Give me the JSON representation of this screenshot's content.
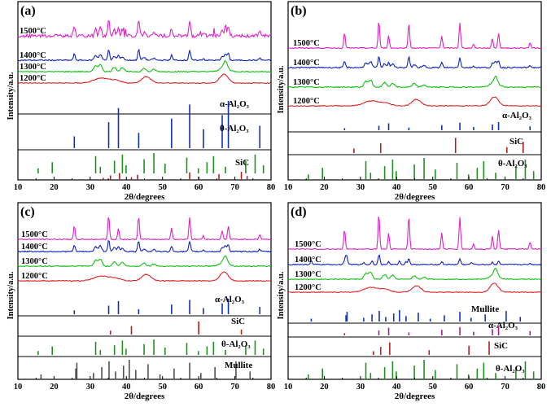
{
  "chart_data": [
    {
      "type": "line",
      "panel": "(a)",
      "xlabel": "2θ/degrees",
      "ylabel": "Intensity/a.u.",
      "xlim": [
        10,
        80
      ],
      "xticks": [
        10,
        20,
        30,
        40,
        50,
        60,
        70,
        80
      ],
      "grid": false,
      "series": [
        {
          "name": "1500°C",
          "color": "#e020c8"
        },
        {
          "name": "1400°C",
          "color": "#1020c0"
        },
        {
          "name": "1300°C",
          "color": "#10c010"
        },
        {
          "name": "1200°C",
          "color": "#e02020"
        }
      ],
      "references": [
        {
          "name": "α-Al₂O₃",
          "color": "#1030b0",
          "peaks": [
            25.6,
            35.1,
            37.8,
            43.4,
            52.5,
            57.5,
            61.3,
            66.5,
            68.2,
            76.9
          ]
        },
        {
          "name": "θ-Al₂O₃",
          "color": "#209020",
          "peaks": [
            15.6,
            19.5,
            31.5,
            32.8,
            36.7,
            38.9,
            39.9,
            44.9,
            47.6,
            50.7,
            56.7,
            59.9,
            62.3,
            64.1,
            67.4,
            73.0,
            75.6,
            77.9
          ]
        },
        {
          "name": "SiC",
          "color": "#b02020",
          "peaks": [
            33.6,
            35.6,
            38.1,
            41.4,
            43.1,
            57.5,
            60.0,
            65.6,
            71.8,
            73.4
          ]
        }
      ]
    },
    {
      "type": "line",
      "panel": "(b)",
      "xlabel": "2θ/degrees",
      "ylabel": "Intensity/a.u.",
      "xlim": [
        10,
        80
      ],
      "xticks": [
        10,
        20,
        30,
        40,
        50,
        60,
        70,
        80
      ],
      "grid": false,
      "series": [
        {
          "name": "1500°C",
          "color": "#e020c8"
        },
        {
          "name": "1400°C",
          "color": "#1020c0"
        },
        {
          "name": "1300°C",
          "color": "#10c010"
        },
        {
          "name": "1200°C",
          "color": "#e02020"
        }
      ],
      "references": [
        {
          "name": "α-Al₂O₃",
          "color": "#1030b0",
          "peaks": [
            25.6,
            35.1,
            37.8,
            43.4,
            52.5,
            57.5,
            61.3,
            66.5,
            68.2,
            76.9
          ]
        },
        {
          "name": "SiC",
          "color": "#b02020",
          "peaks": [
            28.2,
            35.6,
            56.3,
            70.5,
            75.0
          ]
        },
        {
          "name": "θ-Al₂O₃",
          "color": "#209020",
          "peaks": [
            15.6,
            19.5,
            31.5,
            32.8,
            36.7,
            38.9,
            39.9,
            44.9,
            47.6,
            50.7,
            56.7,
            59.9,
            62.3,
            64.1,
            67.4,
            73.0,
            75.6,
            77.9
          ]
        }
      ]
    },
    {
      "type": "line",
      "panel": "(c)",
      "xlabel": "2θ/degrees",
      "ylabel": "Intensity/a.u.",
      "xlim": [
        10,
        80
      ],
      "xticks": [
        10,
        20,
        30,
        40,
        50,
        60,
        70,
        80
      ],
      "grid": false,
      "series": [
        {
          "name": "1500°C",
          "color": "#e020c8"
        },
        {
          "name": "1400°C",
          "color": "#1020c0"
        },
        {
          "name": "1300°C",
          "color": "#10c010"
        },
        {
          "name": "1200°C",
          "color": "#e02020"
        }
      ],
      "references": [
        {
          "name": "α-Al₂O₃",
          "color": "#1030b0",
          "peaks": [
            25.6,
            35.1,
            37.8,
            43.4,
            52.5,
            57.5,
            61.3,
            66.5,
            68.2,
            76.9
          ]
        },
        {
          "name": "SiC",
          "color": "#b02020",
          "peaks": [
            35.6,
            41.4,
            60.0,
            71.8
          ]
        },
        {
          "name": "θ-Al₂O₃",
          "color": "#209020",
          "peaks": [
            15.6,
            19.5,
            31.5,
            32.8,
            36.7,
            38.9,
            39.9,
            44.9,
            47.6,
            50.7,
            56.7,
            59.9,
            62.3,
            64.1,
            67.4,
            73.0,
            75.6,
            77.9
          ]
        },
        {
          "name": "Mullite",
          "color": "#505050",
          "peaks": [
            16.4,
            26.0,
            26.3,
            30.9,
            33.2,
            35.2,
            37.0,
            39.2,
            40.8,
            42.6,
            46.0,
            49.3,
            53.2,
            57.5,
            60.6,
            64.5,
            70.3,
            74.2
          ]
        }
      ]
    },
    {
      "type": "line",
      "panel": "(d)",
      "xlabel": "2θ/degrees",
      "ylabel": "Intensity/a.u.",
      "xlim": [
        10,
        80
      ],
      "xticks": [
        10,
        20,
        30,
        40,
        50,
        60,
        70,
        80
      ],
      "grid": false,
      "series": [
        {
          "name": "1500°C",
          "color": "#e020c8"
        },
        {
          "name": "1400°C",
          "color": "#1020c0"
        },
        {
          "name": "1300°C",
          "color": "#10c010"
        },
        {
          "name": "1200°C",
          "color": "#e02020"
        }
      ],
      "references": [
        {
          "name": "Mullite",
          "color": "#1030c0",
          "peaks": [
            16.4,
            26.0,
            26.3,
            30.9,
            33.2,
            35.2,
            37.0,
            39.2,
            40.8,
            42.6,
            46.0,
            49.3,
            53.2,
            57.5,
            60.6,
            64.5,
            70.3,
            74.2
          ]
        },
        {
          "name": "α-Al₂O₃",
          "color": "#a02090",
          "peaks": [
            25.6,
            35.1,
            37.8,
            43.4,
            52.5,
            57.5,
            61.3,
            66.5,
            68.2,
            76.9
          ]
        },
        {
          "name": "SiC",
          "color": "#b02020",
          "peaks": [
            33.6,
            35.6,
            38.1,
            49.0,
            60.0,
            65.6
          ]
        },
        {
          "name": "θ-Al₂O₃",
          "color": "#209020",
          "peaks": [
            15.6,
            19.5,
            31.5,
            32.8,
            36.7,
            38.9,
            39.9,
            44.9,
            47.6,
            50.7,
            56.7,
            59.9,
            62.3,
            64.1,
            67.4,
            73.0,
            75.6,
            77.9
          ]
        }
      ]
    }
  ]
}
